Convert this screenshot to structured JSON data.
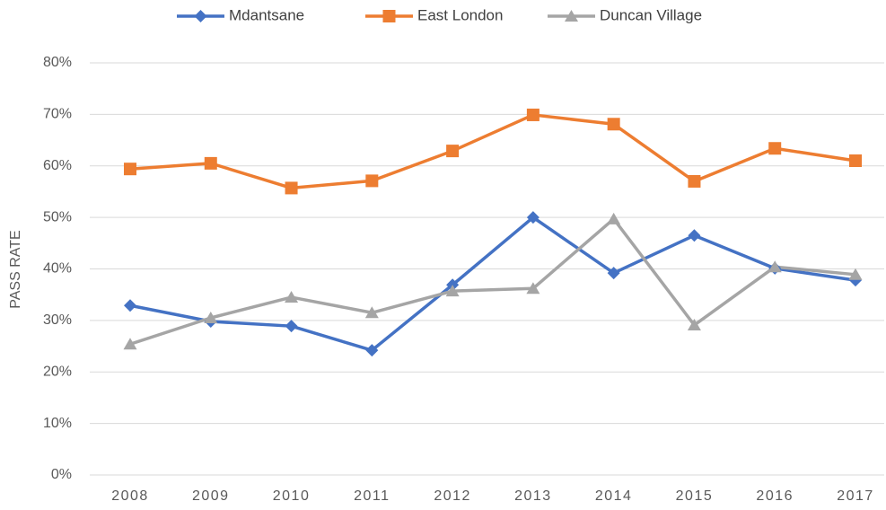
{
  "chart_data": {
    "type": "line",
    "y_label": "PASS RATE",
    "categories": [
      "2008",
      "2009",
      "2010",
      "2011",
      "2012",
      "2013",
      "2014",
      "2015",
      "2016",
      "2017"
    ],
    "series": [
      {
        "name": "Mdantsane",
        "color": "#4472c4",
        "marker": "diamond",
        "values": [
          32.9,
          29.8,
          28.9,
          24.2,
          36.9,
          50.0,
          39.2,
          46.5,
          40.1,
          37.8
        ]
      },
      {
        "name": "East London",
        "color": "#ed7d31",
        "marker": "square",
        "values": [
          59.4,
          60.5,
          55.7,
          57.1,
          62.9,
          69.9,
          68.1,
          57.0,
          63.4,
          61.0
        ]
      },
      {
        "name": "Duncan Village",
        "color": "#a5a5a5",
        "marker": "triangle",
        "values": [
          25.4,
          30.5,
          34.5,
          31.5,
          35.7,
          36.2,
          49.7,
          29.1,
          40.4,
          38.9
        ]
      }
    ],
    "ylim": [
      0,
      80
    ],
    "yticks": [
      {
        "value": 0,
        "label": "0%"
      },
      {
        "value": 10,
        "label": "10%"
      },
      {
        "value": 20,
        "label": "20%"
      },
      {
        "value": 30,
        "label": "30%"
      },
      {
        "value": 40,
        "label": "40%"
      },
      {
        "value": 50,
        "label": "50%"
      },
      {
        "value": 60,
        "label": "60%"
      },
      {
        "value": 70,
        "label": "70%"
      },
      {
        "value": 80,
        "label": "80%"
      }
    ],
    "grid": true,
    "legend": "top"
  }
}
